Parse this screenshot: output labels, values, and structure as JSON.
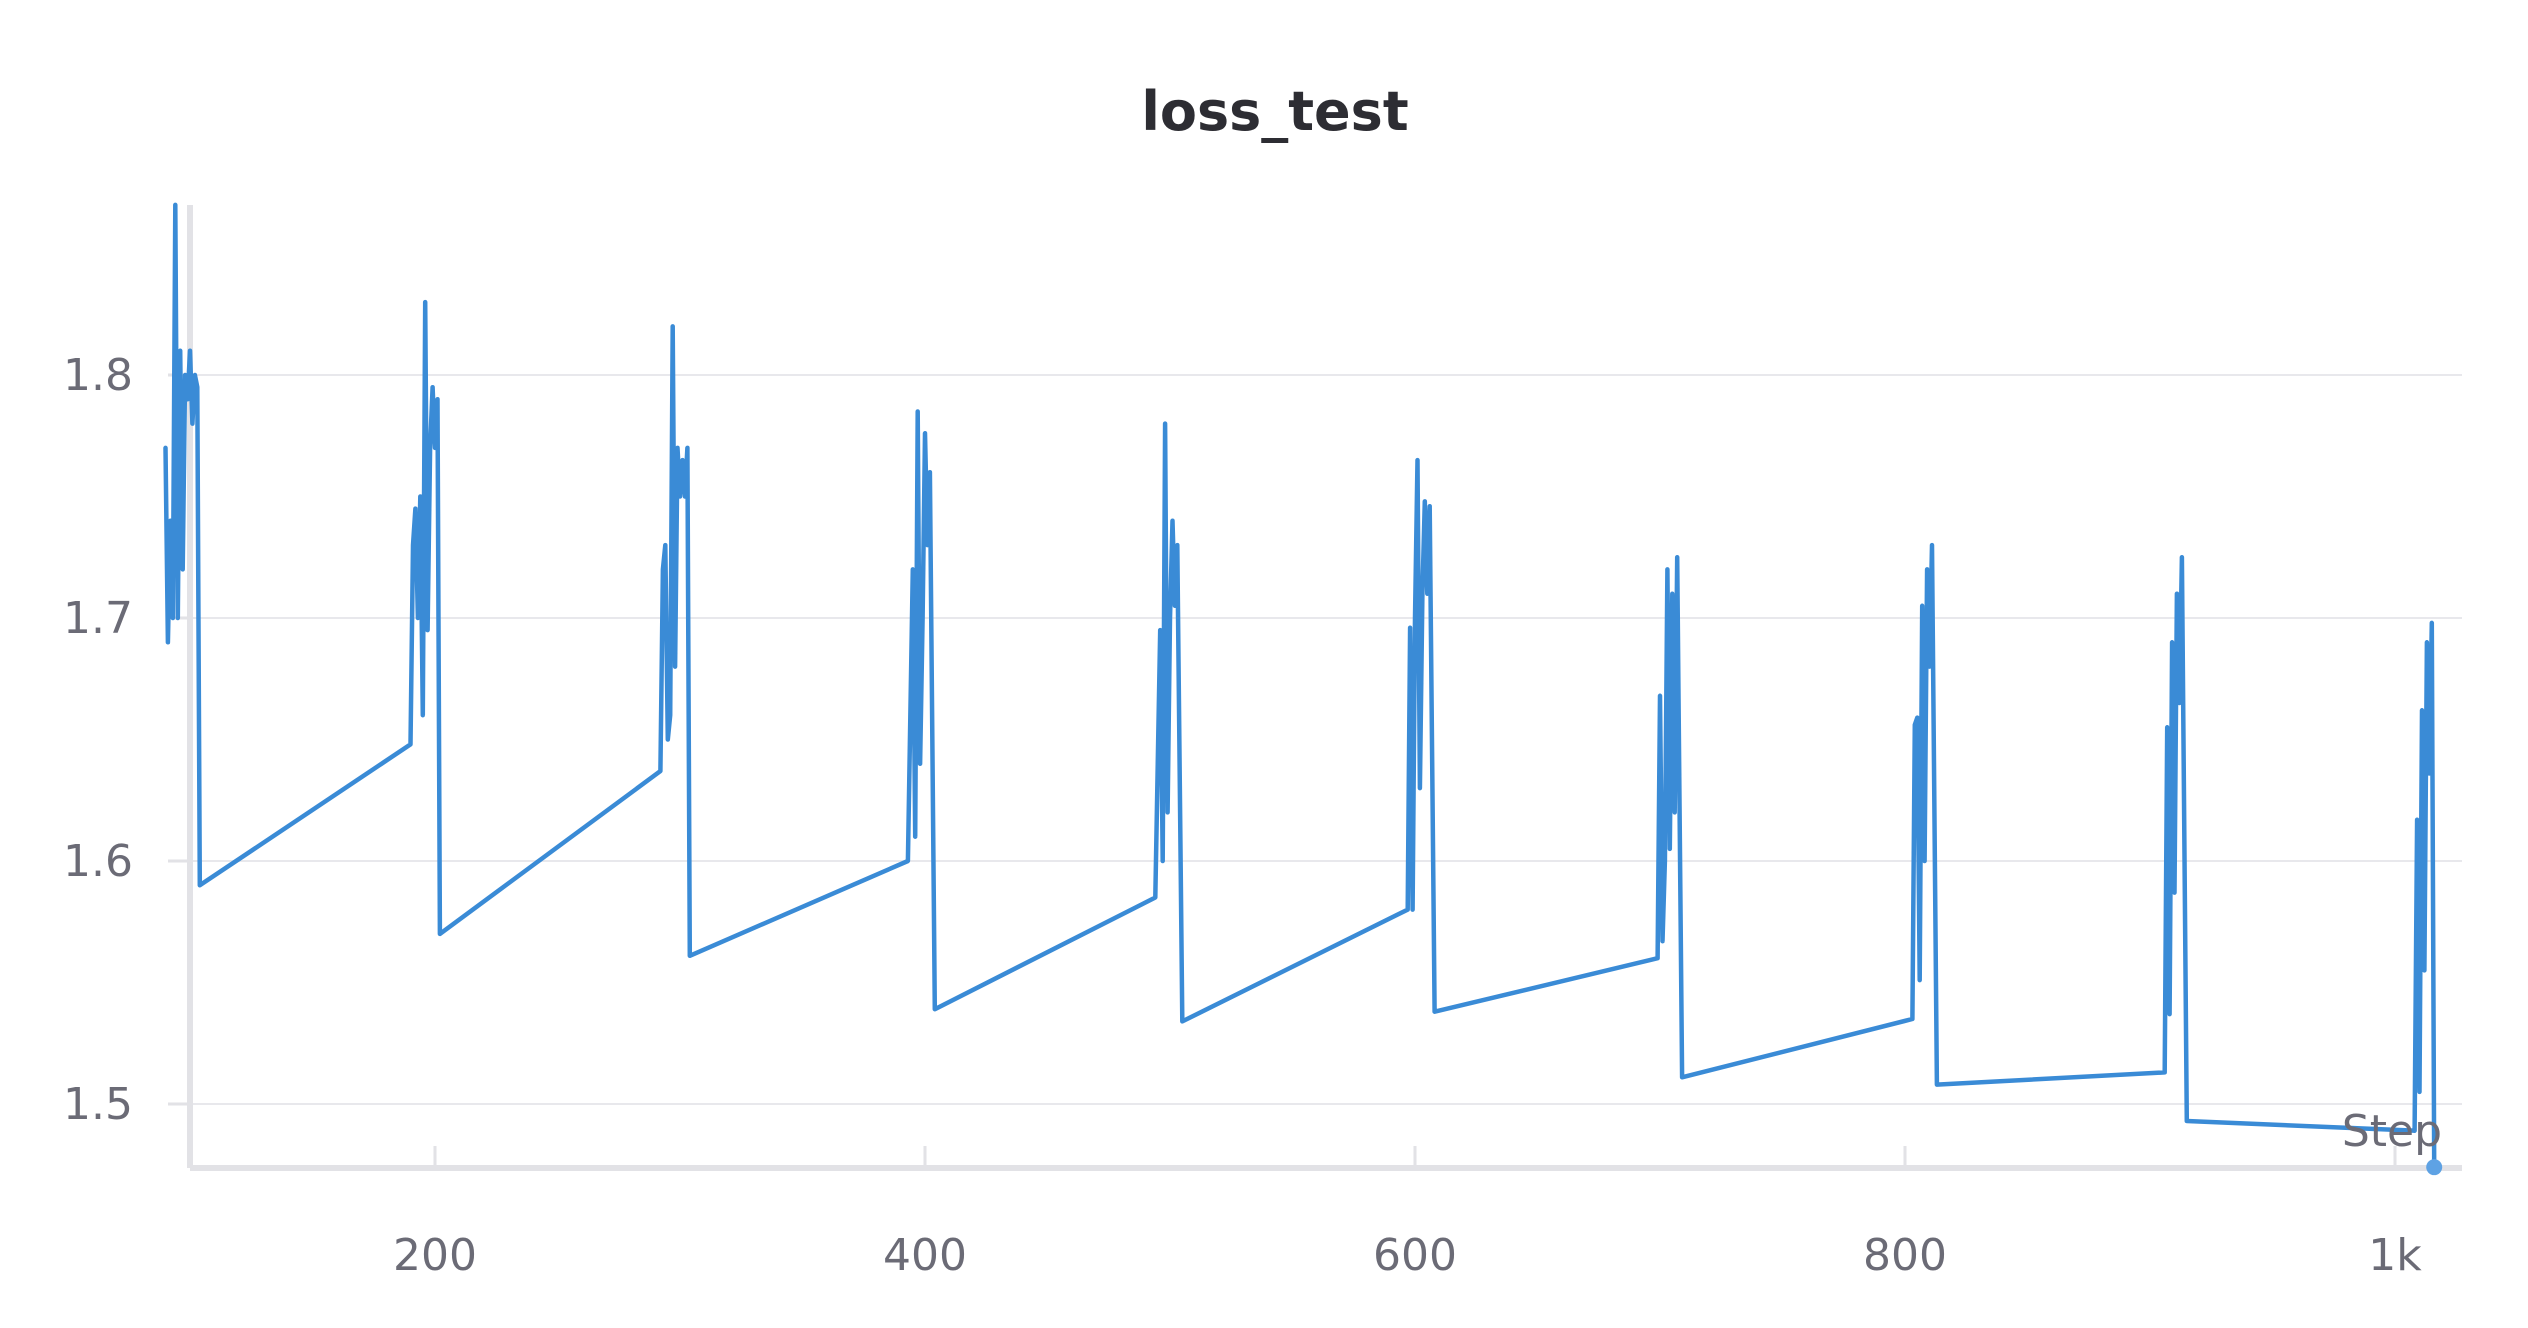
{
  "chart_data": {
    "type": "line",
    "title": "loss_test",
    "xlabel": "Step",
    "ylabel": "",
    "xlim": [
      88,
      1020
    ],
    "ylim": [
      1.474,
      1.872
    ],
    "x_ticks": [
      {
        "value": 200,
        "label": "200"
      },
      {
        "value": 400,
        "label": "400"
      },
      {
        "value": 600,
        "label": "600"
      },
      {
        "value": 800,
        "label": "800"
      },
      {
        "value": 1000,
        "label": "1k"
      }
    ],
    "y_ticks": [
      {
        "value": 1.5,
        "label": "1.5"
      },
      {
        "value": 1.6,
        "label": "1.6"
      },
      {
        "value": 1.7,
        "label": "1.7"
      },
      {
        "value": 1.8,
        "label": "1.8"
      }
    ],
    "grid": "horizontal",
    "color": "#3a8bd6",
    "series": [
      {
        "points": [
          [
            90,
            1.77
          ],
          [
            91,
            1.69
          ],
          [
            92,
            1.74
          ],
          [
            93,
            1.7
          ],
          [
            94,
            1.87
          ],
          [
            95,
            1.7
          ],
          [
            96,
            1.81
          ],
          [
            97,
            1.72
          ],
          [
            98,
            1.8
          ],
          [
            99,
            1.79
          ],
          [
            100,
            1.81
          ],
          [
            101,
            1.78
          ],
          [
            102,
            1.8
          ],
          [
            103,
            1.795
          ],
          [
            104,
            1.59
          ],
          [
            190,
            1.648
          ],
          [
            191,
            1.73
          ],
          [
            192,
            1.745
          ],
          [
            193,
            1.7
          ],
          [
            194,
            1.75
          ],
          [
            195,
            1.66
          ],
          [
            196,
            1.83
          ],
          [
            197,
            1.695
          ],
          [
            198,
            1.77
          ],
          [
            199,
            1.795
          ],
          [
            200,
            1.77
          ],
          [
            201,
            1.79
          ],
          [
            202,
            1.57
          ],
          [
            292,
            1.637
          ],
          [
            293,
            1.72
          ],
          [
            294,
            1.73
          ],
          [
            295,
            1.65
          ],
          [
            296,
            1.66
          ],
          [
            297,
            1.82
          ],
          [
            298,
            1.68
          ],
          [
            299,
            1.77
          ],
          [
            300,
            1.75
          ],
          [
            301,
            1.765
          ],
          [
            302,
            1.75
          ],
          [
            303,
            1.77
          ],
          [
            304,
            1.561
          ],
          [
            393,
            1.6
          ],
          [
            395,
            1.72
          ],
          [
            396,
            1.61
          ],
          [
            397,
            1.785
          ],
          [
            398,
            1.64
          ],
          [
            399,
            1.7
          ],
          [
            400,
            1.776
          ],
          [
            401,
            1.73
          ],
          [
            402,
            1.76
          ],
          [
            404,
            1.539
          ],
          [
            494,
            1.585
          ],
          [
            496,
            1.695
          ],
          [
            497,
            1.6
          ],
          [
            498,
            1.78
          ],
          [
            499,
            1.62
          ],
          [
            500,
            1.7
          ],
          [
            501,
            1.74
          ],
          [
            502,
            1.705
          ],
          [
            503,
            1.73
          ],
          [
            505,
            1.534
          ],
          [
            597,
            1.58
          ],
          [
            598,
            1.696
          ],
          [
            599,
            1.58
          ],
          [
            600,
            1.7
          ],
          [
            601,
            1.765
          ],
          [
            602,
            1.63
          ],
          [
            603,
            1.71
          ],
          [
            604,
            1.748
          ],
          [
            605,
            1.71
          ],
          [
            606,
            1.746
          ],
          [
            608,
            1.538
          ],
          [
            699,
            1.56
          ],
          [
            700,
            1.668
          ],
          [
            701,
            1.567
          ],
          [
            702,
            1.6
          ],
          [
            703,
            1.72
          ],
          [
            704,
            1.605
          ],
          [
            705,
            1.71
          ],
          [
            706,
            1.62
          ],
          [
            707,
            1.725
          ],
          [
            709,
            1.511
          ],
          [
            803,
            1.535
          ],
          [
            804,
            1.656
          ],
          [
            805,
            1.659
          ],
          [
            806,
            1.551
          ],
          [
            807,
            1.705
          ],
          [
            808,
            1.6
          ],
          [
            809,
            1.72
          ],
          [
            810,
            1.68
          ],
          [
            811,
            1.73
          ],
          [
            813,
            1.508
          ],
          [
            906,
            1.513
          ],
          [
            907,
            1.655
          ],
          [
            908,
            1.537
          ],
          [
            909,
            1.69
          ],
          [
            910,
            1.587
          ],
          [
            911,
            1.71
          ],
          [
            912,
            1.665
          ],
          [
            913,
            1.725
          ],
          [
            915,
            1.493
          ],
          [
            1008,
            1.489
          ],
          [
            1009,
            1.617
          ],
          [
            1010,
            1.505
          ],
          [
            1011,
            1.662
          ],
          [
            1012,
            1.555
          ],
          [
            1013,
            1.69
          ],
          [
            1014,
            1.636
          ],
          [
            1015,
            1.698
          ],
          [
            1016,
            1.474
          ]
        ]
      }
    ]
  }
}
